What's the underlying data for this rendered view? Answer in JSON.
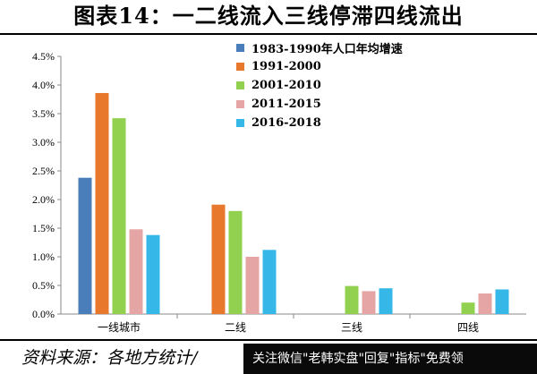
{
  "title": "图表14：一二线流入三线停滞四线流出",
  "source": "资料来源：各地方统计/",
  "overlay_banner": "关注微信\"老韩实盘\"回复\"指标\"免费领",
  "chart_data": {
    "type": "bar",
    "categories": [
      "一线城市",
      "二线",
      "三线",
      "四线"
    ],
    "ylim": [
      0,
      4.5
    ],
    "yticks": [
      "0.0%",
      "0.5%",
      "1.0%",
      "1.5%",
      "2.0%",
      "2.5%",
      "3.0%",
      "3.5%",
      "4.0%",
      "4.5%"
    ],
    "grid": false,
    "legend_position": "top-center",
    "series": [
      {
        "name": "1983-1990年人口年均增速",
        "color": "#4a7ebb",
        "values": [
          2.38,
          null,
          null,
          null
        ]
      },
      {
        "name": "1991-2000",
        "color": "#e8792c",
        "values": [
          3.86,
          1.91,
          null,
          null
        ]
      },
      {
        "name": "2001-2010",
        "color": "#92d050",
        "values": [
          3.42,
          1.8,
          0.49,
          0.2
        ]
      },
      {
        "name": "2011-2015",
        "color": "#e6a5a5",
        "values": [
          1.48,
          1.0,
          0.4,
          0.36
        ]
      },
      {
        "name": "2016-2018",
        "color": "#35b8e8",
        "values": [
          1.38,
          1.12,
          0.45,
          0.43
        ]
      }
    ]
  }
}
